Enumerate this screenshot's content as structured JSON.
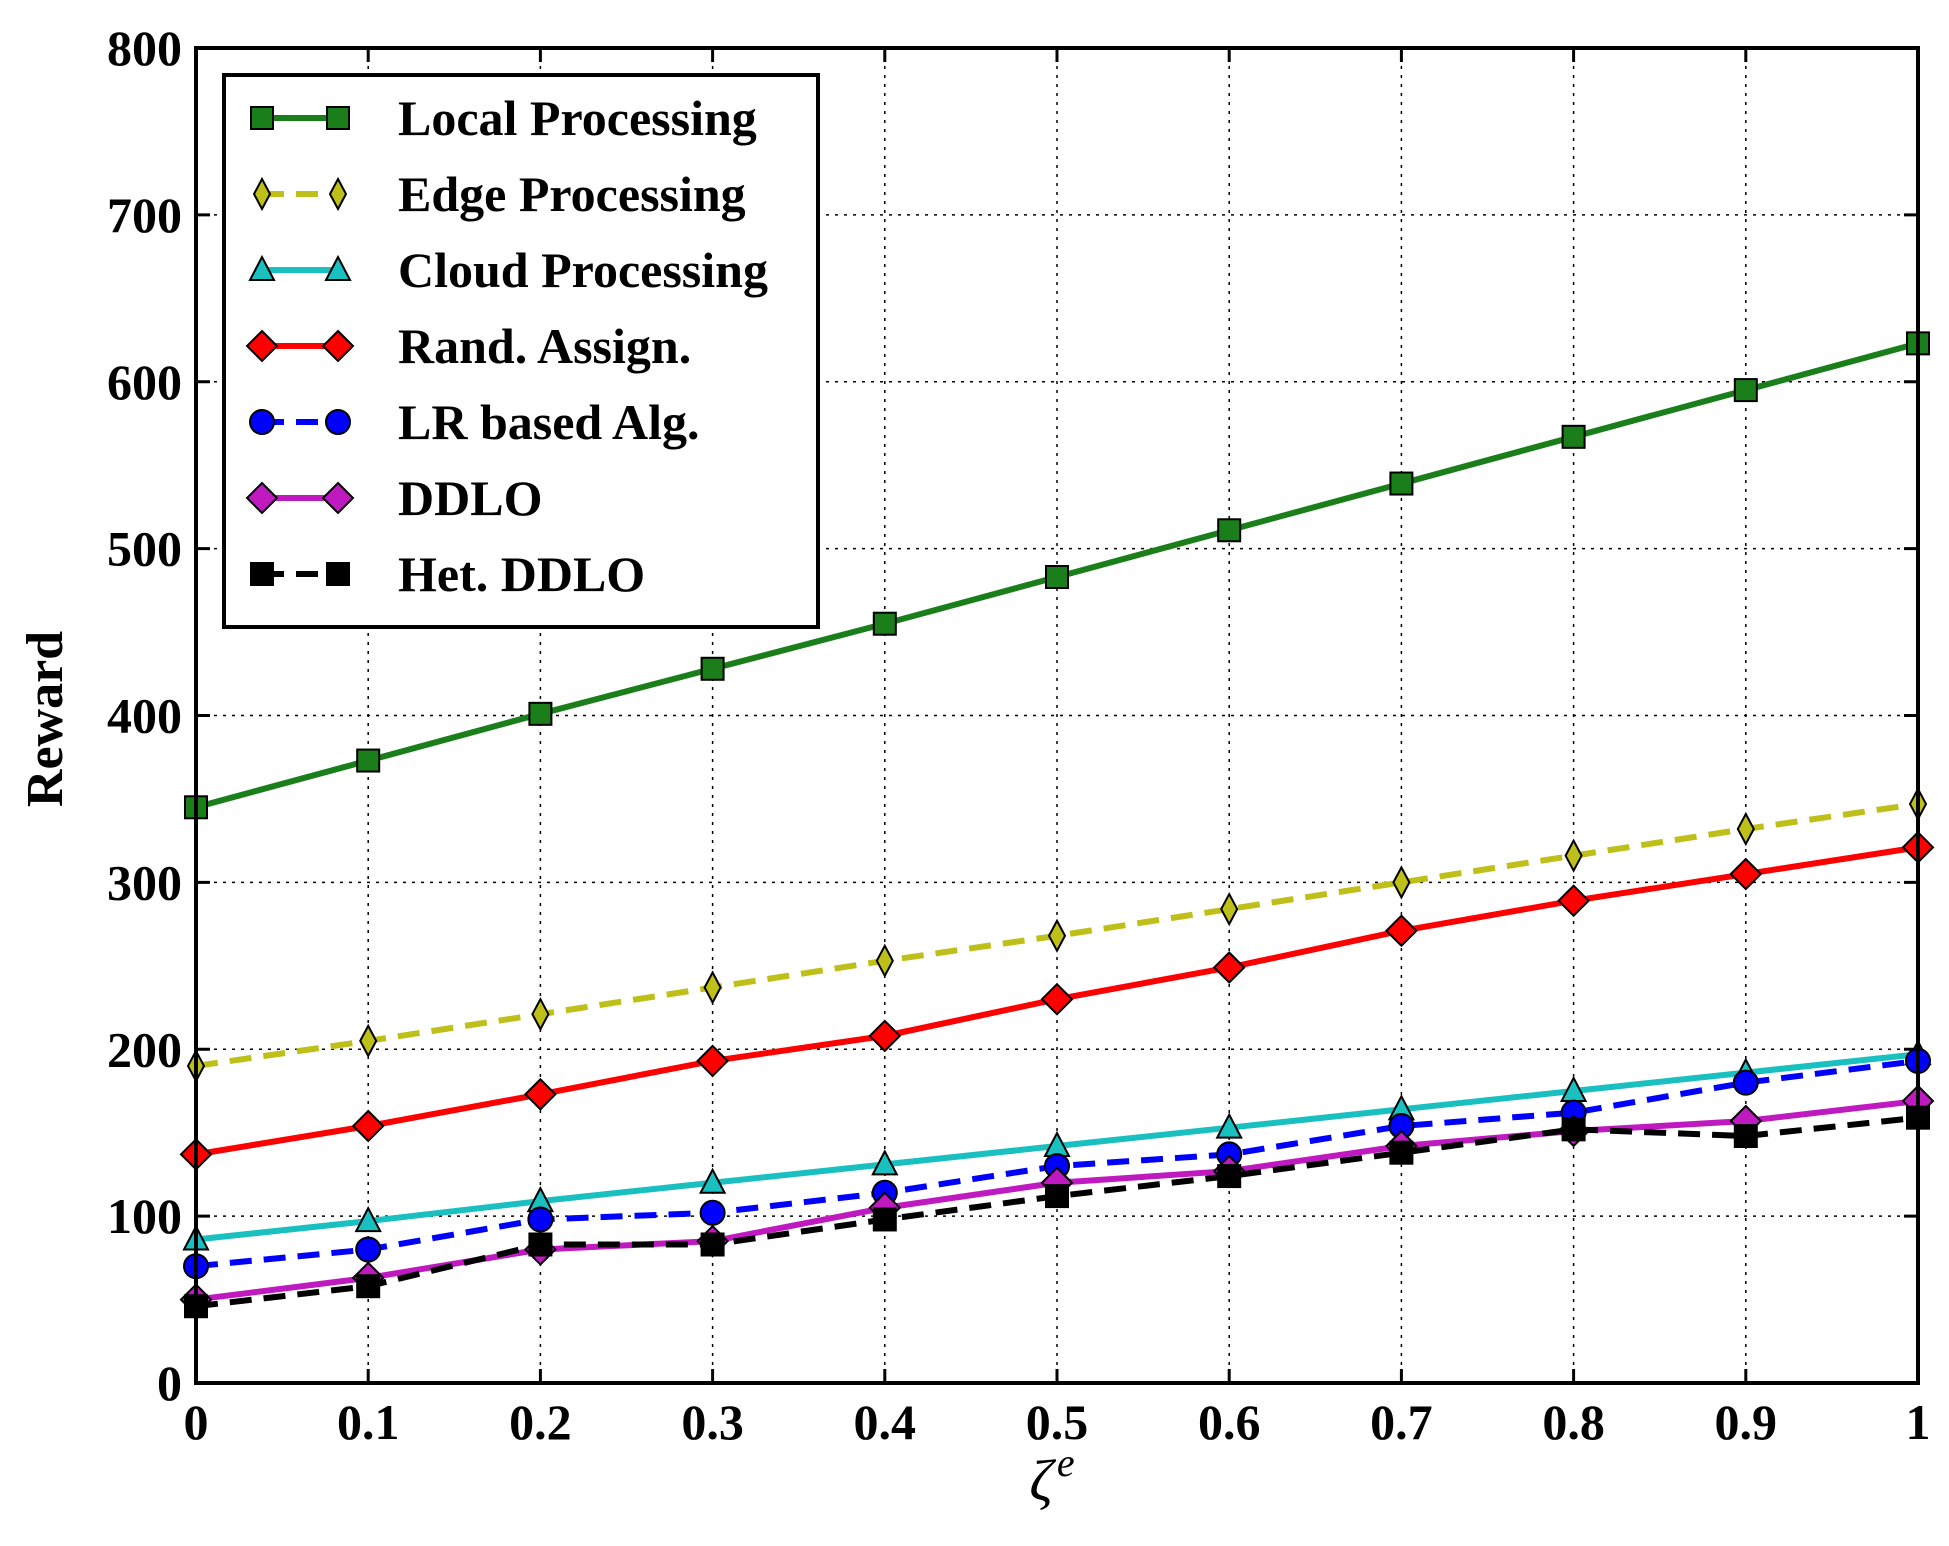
{
  "chart_data": {
    "type": "line",
    "title": "",
    "xlabel": "ζ",
    "xlabel_superscript": "e",
    "ylabel": "Reward",
    "xlim": [
      0,
      1
    ],
    "ylim": [
      0,
      800
    ],
    "grid": true,
    "legend_position": "top-left",
    "x": [
      0,
      0.1,
      0.2,
      0.3,
      0.4,
      0.5,
      0.6,
      0.7,
      0.8,
      0.9,
      1
    ],
    "x_tick_labels": [
      "0",
      "0.1",
      "0.2",
      "0.3",
      "0.4",
      "0.5",
      "0.6",
      "0.7",
      "0.8",
      "0.9",
      "1"
    ],
    "y_ticks": [
      0,
      100,
      200,
      300,
      400,
      500,
      600,
      700,
      800
    ],
    "y_tick_labels": [
      "0",
      "100",
      "200",
      "300",
      "400",
      "500",
      "600",
      "700",
      "800"
    ],
    "series": [
      {
        "name": "Local Processing",
        "color": "#1a7f1a",
        "marker": "square",
        "dashed": false,
        "values": [
          345,
          373,
          401,
          428,
          455,
          483,
          511,
          539,
          567,
          595,
          623
        ]
      },
      {
        "name": "Edge Processing",
        "color": "#bfbf1a",
        "marker": "thin-diamond",
        "dashed": true,
        "values": [
          190,
          205,
          221,
          237,
          253,
          268,
          284,
          300,
          316,
          332,
          347
        ]
      },
      {
        "name": "Cloud Processing",
        "color": "#1abfbf",
        "marker": "triangle",
        "dashed": false,
        "values": [
          86,
          97,
          109,
          120,
          131,
          142,
          153,
          164,
          175,
          186,
          197
        ]
      },
      {
        "name": "Rand. Assign.",
        "color": "#ff0000",
        "marker": "diamond",
        "dashed": false,
        "values": [
          137,
          154,
          173,
          193,
          208,
          230,
          249,
          271,
          289,
          305,
          321
        ]
      },
      {
        "name": "LR based Alg.",
        "color": "#0000ff",
        "marker": "circle",
        "dashed": true,
        "values": [
          70,
          80,
          98,
          102,
          114,
          130,
          137,
          154,
          162,
          180,
          193
        ]
      },
      {
        "name": "DDLO",
        "color": "#bf1abf",
        "marker": "diamond",
        "dashed": false,
        "values": [
          50,
          63,
          80,
          85,
          105,
          120,
          127,
          142,
          151,
          157,
          169
        ]
      },
      {
        "name": "Het. DDLO",
        "color": "#000000",
        "marker": "square",
        "dashed": true,
        "values": [
          46,
          58,
          83,
          83,
          98,
          112,
          124,
          138,
          152,
          148,
          159
        ]
      }
    ]
  }
}
